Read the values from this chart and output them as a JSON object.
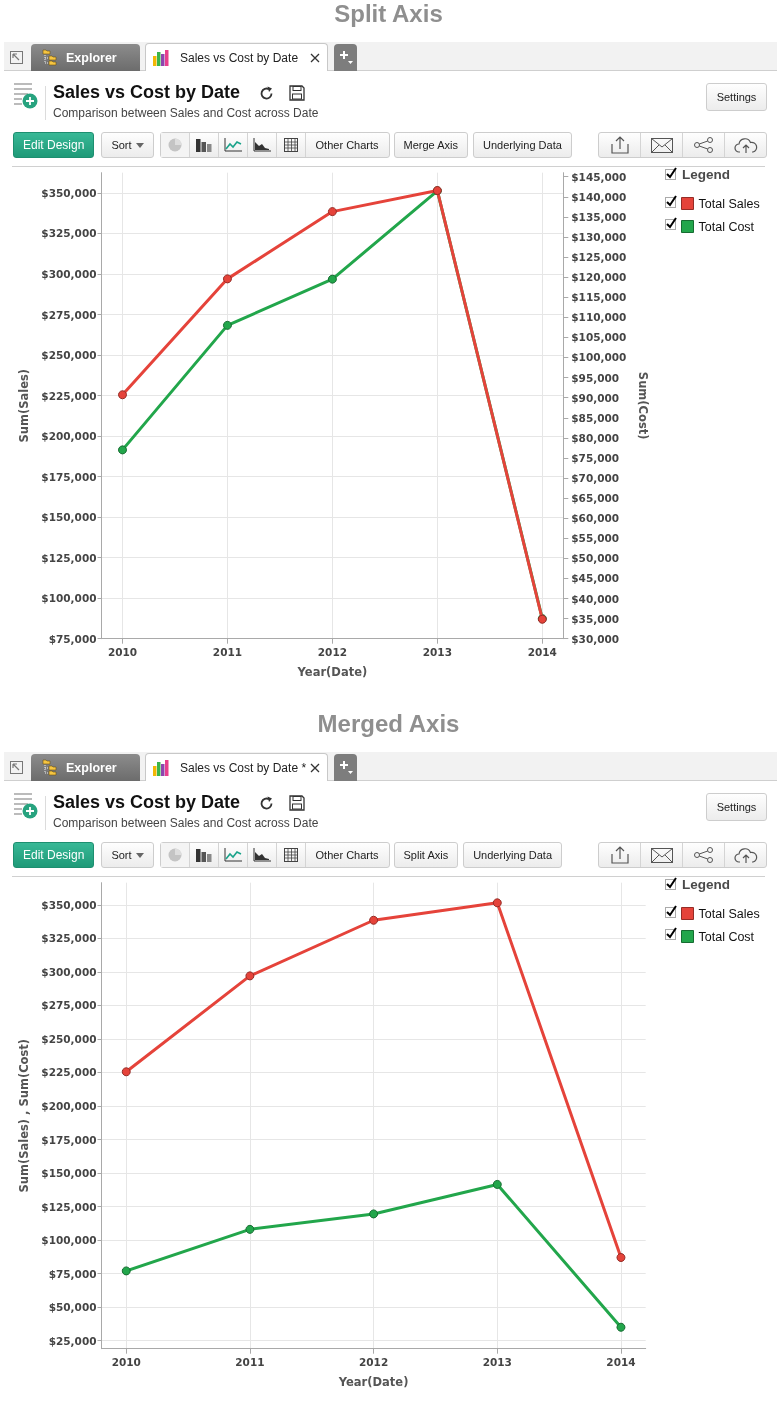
{
  "chart_data": [
    {
      "type": "line",
      "title": "Sales vs Cost by Date",
      "subtitle": "Comparison between Sales and Cost across Date",
      "xlabel": "Year(Date)",
      "ylabel": "Sum(Sales)",
      "y2label": "Sum(Cost)",
      "legend_title": "Legend",
      "annotations": [
        "Split Axis",
        "Explorer",
        "Sales vs Cost by Date",
        "Settings",
        "Edit Design",
        "Sort",
        "Other Charts",
        "Merge Axis",
        "Underlying Data"
      ],
      "x": [
        2010,
        2011,
        2012,
        2013,
        2014
      ],
      "series": [
        {
          "name": "Total Sales",
          "color": "#e5433a",
          "values": [
            225500,
            297000,
            338500,
            351500,
            87000
          ]
        },
        {
          "name": "Total Cost",
          "color": "#22a64b",
          "axis": "y2",
          "values": [
            77000,
            108000,
            119500,
            141500,
            35000
          ]
        }
      ],
      "xlim": [
        2009.8,
        2014.2
      ],
      "xticks": [
        2010,
        2011,
        2012,
        2013,
        2014
      ],
      "ylim": [
        75000,
        362500
      ],
      "yticks": [
        {
          "value": 75000,
          "label": "$75,000"
        },
        {
          "value": 100000,
          "label": "$100,000"
        },
        {
          "value": 125000,
          "label": "$125,000"
        },
        {
          "value": 150000,
          "label": "$150,000"
        },
        {
          "value": 175000,
          "label": "$175,000"
        },
        {
          "value": 200000,
          "label": "$200,000"
        },
        {
          "value": 225000,
          "label": "$225,000"
        },
        {
          "value": 250000,
          "label": "$250,000"
        },
        {
          "value": 275000,
          "label": "$275,000"
        },
        {
          "value": 300000,
          "label": "$300,000"
        },
        {
          "value": 325000,
          "label": "$325,000"
        },
        {
          "value": 350000,
          "label": "$350,000"
        }
      ],
      "y2lim": [
        30000,
        146000
      ],
      "y2ticks": [
        {
          "value": 30000,
          "label": "$30,000"
        },
        {
          "value": 35000,
          "label": "$35,000"
        },
        {
          "value": 40000,
          "label": "$40,000"
        },
        {
          "value": 45000,
          "label": "$45,000"
        },
        {
          "value": 50000,
          "label": "$50,000"
        },
        {
          "value": 55000,
          "label": "$55,000"
        },
        {
          "value": 60000,
          "label": "$60,000"
        },
        {
          "value": 65000,
          "label": "$65,000"
        },
        {
          "value": 70000,
          "label": "$70,000"
        },
        {
          "value": 75000,
          "label": "$75,000"
        },
        {
          "value": 80000,
          "label": "$80,000"
        },
        {
          "value": 85000,
          "label": "$85,000"
        },
        {
          "value": 90000,
          "label": "$90,000"
        },
        {
          "value": 95000,
          "label": "$95,000"
        },
        {
          "value": 100000,
          "label": "$100,000"
        },
        {
          "value": 105000,
          "label": "$105,000"
        },
        {
          "value": 110000,
          "label": "$110,000"
        },
        {
          "value": 115000,
          "label": "$115,000"
        },
        {
          "value": 120000,
          "label": "$120,000"
        },
        {
          "value": 125000,
          "label": "$125,000"
        },
        {
          "value": 130000,
          "label": "$130,000"
        },
        {
          "value": 135000,
          "label": "$135,000"
        },
        {
          "value": 140000,
          "label": "$140,000"
        },
        {
          "value": 145000,
          "label": "$145,000"
        }
      ],
      "grid": true,
      "legend": "top right",
      "marker": "circle",
      "line_style": "solid"
    },
    {
      "type": "line",
      "title": "Sales vs Cost by Date",
      "subtitle": "Comparison between Sales and Cost across Date",
      "xlabel": "Year(Date)",
      "ylabel": "Sum(Sales) , Sum(Cost)",
      "legend_title": "Legend",
      "annotations": [
        "Merged Axis",
        "Explorer",
        "Sales vs Cost by Date *",
        "Settings",
        "Edit Design",
        "Sort",
        "Other Charts",
        "Split Axis",
        "Underlying Data"
      ],
      "x": [
        2010,
        2011,
        2012,
        2013,
        2014
      ],
      "series": [
        {
          "name": "Total Sales",
          "color": "#e5433a",
          "values": [
            225500,
            297000,
            338500,
            351500,
            87000
          ]
        },
        {
          "name": "Total Cost",
          "color": "#22a64b",
          "values": [
            77000,
            108000,
            119500,
            141500,
            35000
          ]
        }
      ],
      "xlim": [
        2009.8,
        2014.2
      ],
      "xticks": [
        2010,
        2011,
        2012,
        2013,
        2014
      ],
      "ylim": [
        19000,
        366500
      ],
      "yticks": [
        {
          "value": 25000,
          "label": "$25,000"
        },
        {
          "value": 50000,
          "label": "$50,000"
        },
        {
          "value": 75000,
          "label": "$75,000"
        },
        {
          "value": 100000,
          "label": "$100,000"
        },
        {
          "value": 125000,
          "label": "$125,000"
        },
        {
          "value": 150000,
          "label": "$150,000"
        },
        {
          "value": 175000,
          "label": "$175,000"
        },
        {
          "value": 200000,
          "label": "$200,000"
        },
        {
          "value": 225000,
          "label": "$225,000"
        },
        {
          "value": 250000,
          "label": "$250,000"
        },
        {
          "value": 275000,
          "label": "$275,000"
        },
        {
          "value": 300000,
          "label": "$300,000"
        },
        {
          "value": 325000,
          "label": "$325,000"
        },
        {
          "value": 350000,
          "label": "$350,000"
        }
      ],
      "grid": true,
      "legend": "top right",
      "marker": "circle",
      "line_style": "solid"
    }
  ]
}
